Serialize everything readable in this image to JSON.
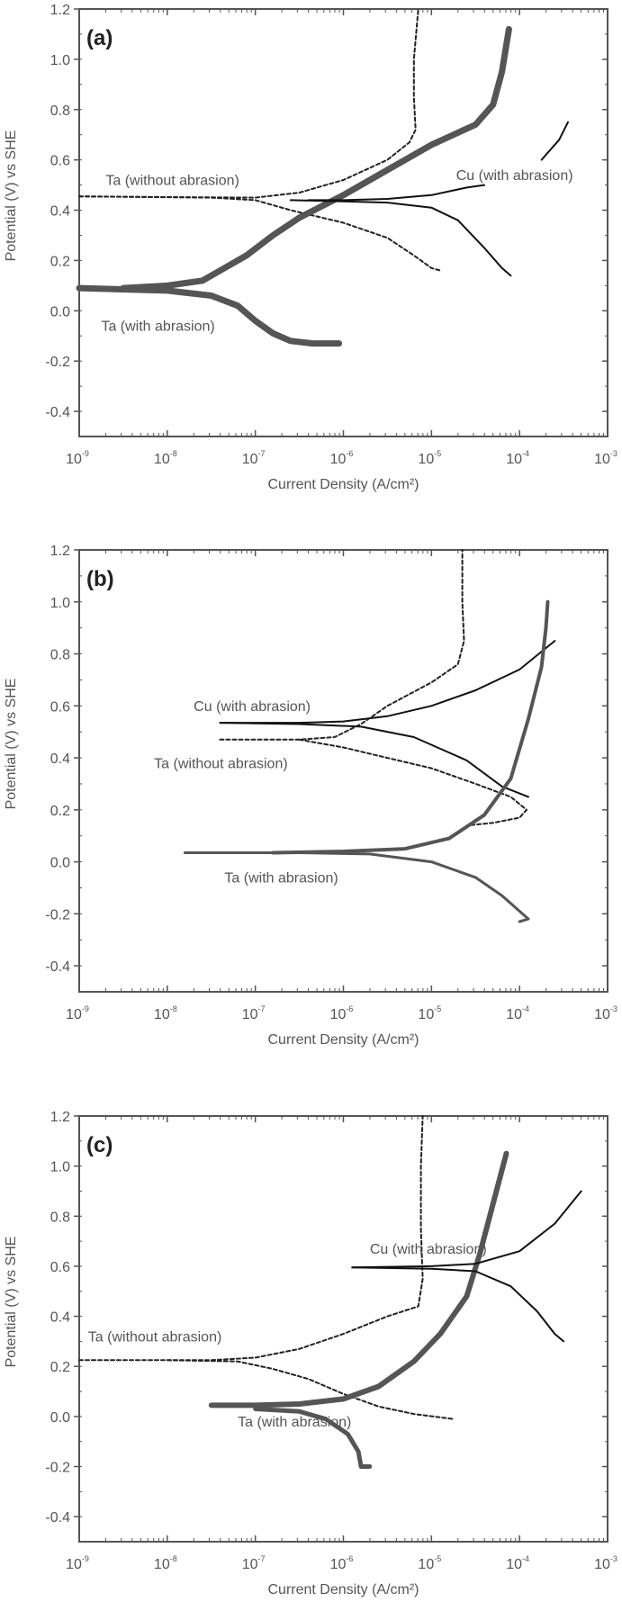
{
  "figure": {
    "y_axis_label": "Potential (V) vs SHE",
    "x_axis_label": "Current Density (A/cm²)",
    "x_tick_labels": [
      "10^-9",
      "10^-8",
      "10^-7",
      "10^-6",
      "10^-5",
      "10^-4",
      "10^-3"
    ],
    "y_tick_labels": [
      "1.2",
      "1.0",
      "0.8",
      "0.6",
      "0.4",
      "0.2",
      "0.0",
      "-0.2",
      "-0.4"
    ]
  },
  "chart_data": [
    {
      "type": "line",
      "panel": "(a)",
      "title": "(a)",
      "xlabel": "Current Density (A/cm²)",
      "ylabel": "Potential (V) vs SHE",
      "xscale": "log",
      "xlim": [
        1e-09,
        0.001
      ],
      "ylim": [
        -0.5,
        1.2
      ],
      "x_ticks": [
        "10^-9",
        "10^-8",
        "10^-7",
        "10^-6",
        "10^-5",
        "10^-4",
        "10^-3"
      ],
      "y_ticks": [
        1.2,
        1.0,
        0.8,
        0.6,
        0.4,
        0.2,
        0.0,
        -0.2,
        -0.4
      ],
      "grid": false,
      "annotations": [
        {
          "text": "Ta (without abrasion)",
          "log_x": -8.7,
          "y": 0.5
        },
        {
          "text": "Cu (with abrasion)",
          "log_x": -4.72,
          "y": 0.52
        },
        {
          "text": "Ta (with abrasion)",
          "log_x": -8.75,
          "y": -0.08
        }
      ],
      "series": [
        {
          "name": "Ta (without abrasion) anodic",
          "style": "dashed",
          "color": "#222222",
          "width": 2,
          "points": [
            [
              -9.0,
              0.455
            ],
            [
              -8.0,
              0.452
            ],
            [
              -7.0,
              0.45
            ],
            [
              -6.5,
              0.47
            ],
            [
              -6.0,
              0.52
            ],
            [
              -5.5,
              0.6
            ],
            [
              -5.25,
              0.67
            ],
            [
              -5.18,
              0.72
            ],
            [
              -5.2,
              0.85
            ],
            [
              -5.2,
              1.0
            ],
            [
              -5.15,
              1.2
            ]
          ]
        },
        {
          "name": "Ta (without abrasion) cathodic",
          "style": "dashed",
          "color": "#222222",
          "width": 2,
          "points": [
            [
              -9.0,
              0.455
            ],
            [
              -7.5,
              0.45
            ],
            [
              -7.0,
              0.44
            ],
            [
              -6.6,
              0.4
            ],
            [
              -6.0,
              0.35
            ],
            [
              -5.5,
              0.29
            ],
            [
              -5.2,
              0.22
            ],
            [
              -5.0,
              0.17
            ],
            [
              -4.9,
              0.16
            ]
          ]
        },
        {
          "name": "Ta (with abrasion) anodic",
          "style": "thick",
          "color": "#555555",
          "width": 7,
          "points": [
            [
              -8.5,
              0.09
            ],
            [
              -8.0,
              0.1
            ],
            [
              -7.6,
              0.12
            ],
            [
              -7.4,
              0.16
            ],
            [
              -7.1,
              0.22
            ],
            [
              -6.8,
              0.3
            ],
            [
              -6.5,
              0.37
            ],
            [
              -6.0,
              0.46
            ],
            [
              -5.5,
              0.56
            ],
            [
              -5.0,
              0.66
            ],
            [
              -4.5,
              0.74
            ],
            [
              -4.3,
              0.82
            ],
            [
              -4.2,
              0.95
            ],
            [
              -4.12,
              1.12
            ]
          ]
        },
        {
          "name": "Ta (with abrasion) cathodic",
          "style": "thick",
          "color": "#555555",
          "width": 7,
          "points": [
            [
              -9.0,
              0.09
            ],
            [
              -8.0,
              0.08
            ],
            [
              -7.5,
              0.06
            ],
            [
              -7.2,
              0.02
            ],
            [
              -7.0,
              -0.04
            ],
            [
              -6.8,
              -0.09
            ],
            [
              -6.6,
              -0.12
            ],
            [
              -6.35,
              -0.13
            ],
            [
              -6.05,
              -0.13
            ]
          ]
        },
        {
          "name": "Cu (with abrasion) anodic",
          "style": "solid",
          "color": "#111111",
          "width": 2,
          "points": [
            [
              -6.4,
              0.44
            ],
            [
              -6.0,
              0.44
            ],
            [
              -5.5,
              0.445
            ],
            [
              -5.0,
              0.46
            ],
            [
              -4.6,
              0.49
            ],
            [
              -4.4,
              0.5
            ]
          ]
        },
        {
          "name": "Cu (with abrasion) cathodic",
          "style": "solid",
          "color": "#111111",
          "width": 2,
          "points": [
            [
              -6.6,
              0.44
            ],
            [
              -6.0,
              0.435
            ],
            [
              -5.5,
              0.43
            ],
            [
              -5.0,
              0.41
            ],
            [
              -4.7,
              0.36
            ],
            [
              -4.4,
              0.25
            ],
            [
              -4.2,
              0.17
            ],
            [
              -4.1,
              0.14
            ]
          ]
        },
        {
          "name": "Cu (with abrasion) upper branch",
          "style": "solid",
          "color": "#111111",
          "width": 2,
          "points": [
            [
              -3.75,
              0.6
            ],
            [
              -3.55,
              0.68
            ],
            [
              -3.45,
              0.75
            ]
          ]
        }
      ]
    },
    {
      "type": "line",
      "panel": "(b)",
      "title": "(b)",
      "xlabel": "Current Density (A/cm²)",
      "ylabel": "Potential (V) vs SHE",
      "xscale": "log",
      "xlim": [
        1e-09,
        0.001
      ],
      "ylim": [
        -0.5,
        1.2
      ],
      "x_ticks": [
        "10^-9",
        "10^-8",
        "10^-7",
        "10^-6",
        "10^-5",
        "10^-4",
        "10^-3"
      ],
      "y_ticks": [
        1.2,
        1.0,
        0.8,
        0.6,
        0.4,
        0.2,
        0.0,
        -0.2,
        -0.4
      ],
      "grid": false,
      "annotations": [
        {
          "text": "Cu (with abrasion)",
          "log_x": -7.7,
          "y": 0.58
        },
        {
          "text": "Ta (without abrasion)",
          "log_x": -8.15,
          "y": 0.36
        },
        {
          "text": "Ta (with abrasion)",
          "log_x": -7.35,
          "y": -0.08
        }
      ],
      "series": [
        {
          "name": "Cu (with abrasion) anodic",
          "style": "solid",
          "color": "#111111",
          "width": 2,
          "points": [
            [
              -7.4,
              0.535
            ],
            [
              -6.5,
              0.535
            ],
            [
              -6.0,
              0.54
            ],
            [
              -5.5,
              0.56
            ],
            [
              -5.0,
              0.6
            ],
            [
              -4.5,
              0.66
            ],
            [
              -4.0,
              0.74
            ],
            [
              -3.6,
              0.85
            ]
          ]
        },
        {
          "name": "Cu (with abrasion) cathodic",
          "style": "solid",
          "color": "#111111",
          "width": 2,
          "points": [
            [
              -7.4,
              0.535
            ],
            [
              -6.5,
              0.53
            ],
            [
              -5.8,
              0.52
            ],
            [
              -5.2,
              0.48
            ],
            [
              -4.6,
              0.39
            ],
            [
              -4.2,
              0.29
            ],
            [
              -3.9,
              0.25
            ]
          ]
        },
        {
          "name": "Ta (without abrasion) anodic",
          "style": "dashed",
          "color": "#222222",
          "width": 2,
          "points": [
            [
              -7.4,
              0.47
            ],
            [
              -6.5,
              0.47
            ],
            [
              -6.1,
              0.48
            ],
            [
              -5.8,
              0.53
            ],
            [
              -5.5,
              0.6
            ],
            [
              -5.0,
              0.69
            ],
            [
              -4.7,
              0.76
            ],
            [
              -4.63,
              0.85
            ],
            [
              -4.65,
              1.0
            ],
            [
              -4.65,
              1.2
            ]
          ]
        },
        {
          "name": "Ta (without abrasion) cathodic",
          "style": "dashed",
          "color": "#222222",
          "width": 2,
          "points": [
            [
              -6.5,
              0.47
            ],
            [
              -6.0,
              0.44
            ],
            [
              -5.5,
              0.4
            ],
            [
              -5.0,
              0.36
            ],
            [
              -4.5,
              0.3
            ],
            [
              -4.1,
              0.25
            ],
            [
              -3.92,
              0.2
            ],
            [
              -4.0,
              0.17
            ],
            [
              -4.3,
              0.15
            ],
            [
              -4.6,
              0.14
            ]
          ]
        },
        {
          "name": "Ta (with abrasion) anodic",
          "style": "thick",
          "color": "#555555",
          "width": 4,
          "points": [
            [
              -6.8,
              0.035
            ],
            [
              -6.0,
              0.04
            ],
            [
              -5.3,
              0.05
            ],
            [
              -4.8,
              0.09
            ],
            [
              -4.4,
              0.18
            ],
            [
              -4.1,
              0.32
            ],
            [
              -3.9,
              0.55
            ],
            [
              -3.75,
              0.75
            ],
            [
              -3.7,
              0.9
            ],
            [
              -3.68,
              1.0
            ]
          ]
        },
        {
          "name": "Ta (with abrasion) cathodic",
          "style": "thick",
          "color": "#555555",
          "width": 3,
          "points": [
            [
              -7.8,
              0.035
            ],
            [
              -6.5,
              0.035
            ],
            [
              -5.7,
              0.03
            ],
            [
              -5.0,
              0.0
            ],
            [
              -4.5,
              -0.06
            ],
            [
              -4.2,
              -0.13
            ],
            [
              -3.9,
              -0.22
            ],
            [
              -4.0,
              -0.23
            ]
          ]
        }
      ]
    },
    {
      "type": "line",
      "panel": "(c)",
      "title": "(c)",
      "xlabel": "Current Density (A/cm²)",
      "ylabel": "Potential (V) vs SHE",
      "xscale": "log",
      "xlim": [
        1e-09,
        0.001
      ],
      "ylim": [
        -0.5,
        1.2
      ],
      "x_ticks": [
        "10^-9",
        "10^-8",
        "10^-7",
        "10^-6",
        "10^-5",
        "10^-4",
        "10^-3"
      ],
      "y_ticks": [
        1.2,
        1.0,
        0.8,
        0.6,
        0.4,
        0.2,
        0.0,
        -0.2,
        -0.4
      ],
      "grid": false,
      "annotations": [
        {
          "text": "Cu (with abrasion)",
          "log_x": -5.7,
          "y": 0.65
        },
        {
          "text": "Ta (without abrasion)",
          "log_x": -8.9,
          "y": 0.3
        },
        {
          "text": "Ta (with abrasion)",
          "log_x": -7.2,
          "y": -0.04
        }
      ],
      "series": [
        {
          "name": "Ta (without abrasion) anodic",
          "style": "dashed",
          "color": "#222222",
          "width": 2,
          "points": [
            [
              -9.0,
              0.225
            ],
            [
              -7.5,
              0.225
            ],
            [
              -7.0,
              0.235
            ],
            [
              -6.5,
              0.27
            ],
            [
              -6.0,
              0.33
            ],
            [
              -5.5,
              0.4
            ],
            [
              -5.15,
              0.44
            ],
            [
              -5.1,
              0.55
            ],
            [
              -5.12,
              0.75
            ],
            [
              -5.12,
              1.0
            ],
            [
              -5.1,
              1.2
            ]
          ]
        },
        {
          "name": "Ta (without abrasion) cathodic",
          "style": "dashed",
          "color": "#222222",
          "width": 2,
          "points": [
            [
              -8.0,
              0.225
            ],
            [
              -7.2,
              0.22
            ],
            [
              -6.8,
              0.19
            ],
            [
              -6.4,
              0.15
            ],
            [
              -6.0,
              0.09
            ],
            [
              -5.6,
              0.04
            ],
            [
              -5.2,
              0.01
            ],
            [
              -4.75,
              -0.01
            ]
          ]
        },
        {
          "name": "Ta (with abrasion) anodic",
          "style": "thick",
          "color": "#555555",
          "width": 6,
          "points": [
            [
              -7.5,
              0.045
            ],
            [
              -7.0,
              0.045
            ],
            [
              -6.5,
              0.05
            ],
            [
              -6.0,
              0.07
            ],
            [
              -5.6,
              0.12
            ],
            [
              -5.2,
              0.22
            ],
            [
              -4.9,
              0.33
            ],
            [
              -4.6,
              0.48
            ],
            [
              -4.45,
              0.65
            ],
            [
              -4.3,
              0.85
            ],
            [
              -4.15,
              1.05
            ]
          ]
        },
        {
          "name": "Ta (with abrasion) cathodic",
          "style": "thick",
          "color": "#555555",
          "width": 5,
          "points": [
            [
              -7.0,
              0.03
            ],
            [
              -6.5,
              0.02
            ],
            [
              -6.2,
              -0.01
            ],
            [
              -5.95,
              -0.07
            ],
            [
              -5.83,
              -0.14
            ],
            [
              -5.8,
              -0.2
            ],
            [
              -5.7,
              -0.2
            ]
          ]
        },
        {
          "name": "Cu (with abrasion) anodic",
          "style": "solid",
          "color": "#111111",
          "width": 2,
          "points": [
            [
              -5.9,
              0.595
            ],
            [
              -5.0,
              0.6
            ],
            [
              -4.5,
              0.61
            ],
            [
              -4.0,
              0.66
            ],
            [
              -3.6,
              0.77
            ],
            [
              -3.3,
              0.9
            ]
          ]
        },
        {
          "name": "Cu (with abrasion) cathodic",
          "style": "solid",
          "color": "#111111",
          "width": 2,
          "points": [
            [
              -5.9,
              0.595
            ],
            [
              -5.0,
              0.59
            ],
            [
              -4.5,
              0.58
            ],
            [
              -4.1,
              0.52
            ],
            [
              -3.8,
              0.42
            ],
            [
              -3.6,
              0.33
            ],
            [
              -3.5,
              0.3
            ]
          ]
        }
      ]
    }
  ]
}
